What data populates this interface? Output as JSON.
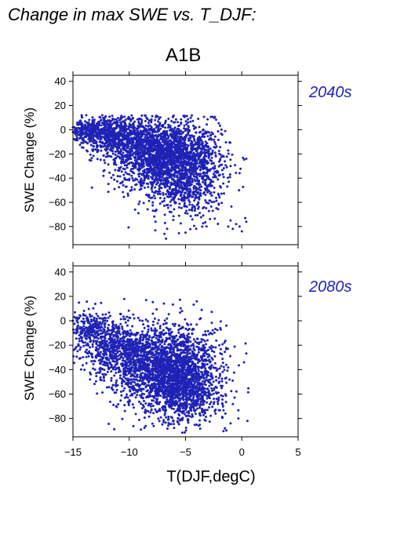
{
  "page_title": "Change in max SWE vs. T_DJF:",
  "scenario": "A1B",
  "colors": {
    "points": "#1f22b5",
    "period_label": "#1f22b5",
    "axis": "#000000"
  },
  "chart_data": [
    {
      "type": "scatter",
      "period": "2040s",
      "xlabel": "T(DJF,degC)",
      "ylabel": "SWE Change (%)",
      "xlim": [
        -15,
        5
      ],
      "ylim": [
        -95,
        45
      ],
      "xticks": [
        -15,
        -10,
        -5,
        0,
        5
      ],
      "yticks": [
        -80,
        -60,
        -40,
        -20,
        0,
        20,
        40
      ],
      "show_xticklabels": false,
      "grid": false,
      "point_count_shown": 3500,
      "clusters": [
        {
          "x_mean": -6.5,
          "x_sd": 2.3,
          "y_mean": -22,
          "y_sd": 14,
          "weight": 0.6
        },
        {
          "x_mean": -11.0,
          "x_sd": 1.8,
          "y_mean": -5,
          "y_sd": 8,
          "weight": 0.22
        },
        {
          "x_mean": -5.0,
          "x_sd": 1.6,
          "y_mean": -50,
          "y_sd": 12,
          "weight": 0.12
        },
        {
          "x_mean": -13.5,
          "x_sd": 1.0,
          "y_mean": 0,
          "y_sd": 4,
          "weight": 0.06
        }
      ],
      "outliers": [
        {
          "x": 0.3,
          "y": -73
        },
        {
          "x": -0.5,
          "y": -78
        },
        {
          "x": -0.2,
          "y": -80
        },
        {
          "x": 0.4,
          "y": -76
        },
        {
          "x": -1.2,
          "y": -80
        },
        {
          "x": -0.8,
          "y": -82
        },
        {
          "x": -1.0,
          "y": -75
        },
        {
          "x": 0.0,
          "y": -84
        },
        {
          "x": -5.0,
          "y": -85
        },
        {
          "x": -15.0,
          "y": 2
        },
        {
          "x": -14.2,
          "y": 3
        },
        {
          "x": -2.0,
          "y": -20
        }
      ]
    },
    {
      "type": "scatter",
      "period": "2080s",
      "xlabel": "T(DJF,degC)",
      "ylabel": "SWE Change (%)",
      "xlim": [
        -15,
        5
      ],
      "ylim": [
        -95,
        45
      ],
      "xticks": [
        -15,
        -10,
        -5,
        0,
        5
      ],
      "yticks": [
        -80,
        -60,
        -40,
        -20,
        0,
        20,
        40
      ],
      "show_xticklabels": true,
      "grid": false,
      "point_count_shown": 3500,
      "clusters": [
        {
          "x_mean": -6.5,
          "x_sd": 2.3,
          "y_mean": -40,
          "y_sd": 17,
          "weight": 0.6
        },
        {
          "x_mean": -11.0,
          "x_sd": 1.8,
          "y_mean": -22,
          "y_sd": 12,
          "weight": 0.2
        },
        {
          "x_mean": -5.0,
          "x_sd": 1.6,
          "y_mean": -62,
          "y_sd": 12,
          "weight": 0.14
        },
        {
          "x_mean": -13.5,
          "x_sd": 1.0,
          "y_mean": -5,
          "y_sd": 6,
          "weight": 0.06
        }
      ],
      "outliers": [
        {
          "x": 0.5,
          "y": -82
        },
        {
          "x": -0.3,
          "y": -80
        },
        {
          "x": -1.5,
          "y": -88
        },
        {
          "x": -1.0,
          "y": -84
        },
        {
          "x": -15.0,
          "y": 0
        },
        {
          "x": -14.0,
          "y": -2
        },
        {
          "x": -8.5,
          "y": 17
        },
        {
          "x": -4.0,
          "y": 16
        },
        {
          "x": -2.0,
          "y": -20
        }
      ]
    }
  ]
}
